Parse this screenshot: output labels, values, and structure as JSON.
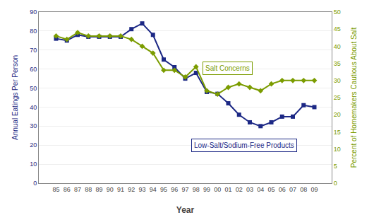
{
  "chart_data": {
    "type": "line",
    "categories": [
      "85",
      "86",
      "87",
      "88",
      "89",
      "90",
      "91",
      "92",
      "93",
      "94",
      "95",
      "96",
      "97",
      "98",
      "99",
      "00",
      "01",
      "02",
      "03",
      "04",
      "05",
      "06",
      "07",
      "08",
      "09"
    ],
    "series": [
      {
        "name": "Low-Salt/Sodium-Free Products",
        "color": "#1c2885",
        "marker": "square",
        "values": [
          76,
          75,
          78,
          77,
          77,
          77,
          77,
          81,
          84,
          78,
          65,
          61,
          55,
          58,
          48,
          47,
          42,
          36,
          32,
          30,
          32,
          35,
          35,
          41,
          40
        ]
      },
      {
        "name": "Salt Concerns",
        "color": "#7b9c00",
        "marker": "diamond",
        "axis": "y2",
        "values": [
          43,
          42,
          44,
          43,
          43,
          43,
          43,
          42,
          40,
          38,
          33,
          33,
          31,
          34,
          27,
          26,
          28,
          29,
          28,
          27,
          29,
          30,
          30,
          30,
          30
        ]
      }
    ],
    "xlabel": "Year",
    "ylabel": "Annual Eatings Per Person",
    "y2label": "Percent of Homemakers Cautious About Salt",
    "ylim": [
      0,
      90
    ],
    "yticks": [
      0,
      10,
      20,
      30,
      40,
      50,
      60,
      70,
      80,
      90
    ],
    "y2lim": [
      0,
      50
    ],
    "y2ticks": [
      0,
      5,
      10,
      15,
      20,
      25,
      30,
      35,
      40,
      45,
      50
    ],
    "grid": true
  }
}
